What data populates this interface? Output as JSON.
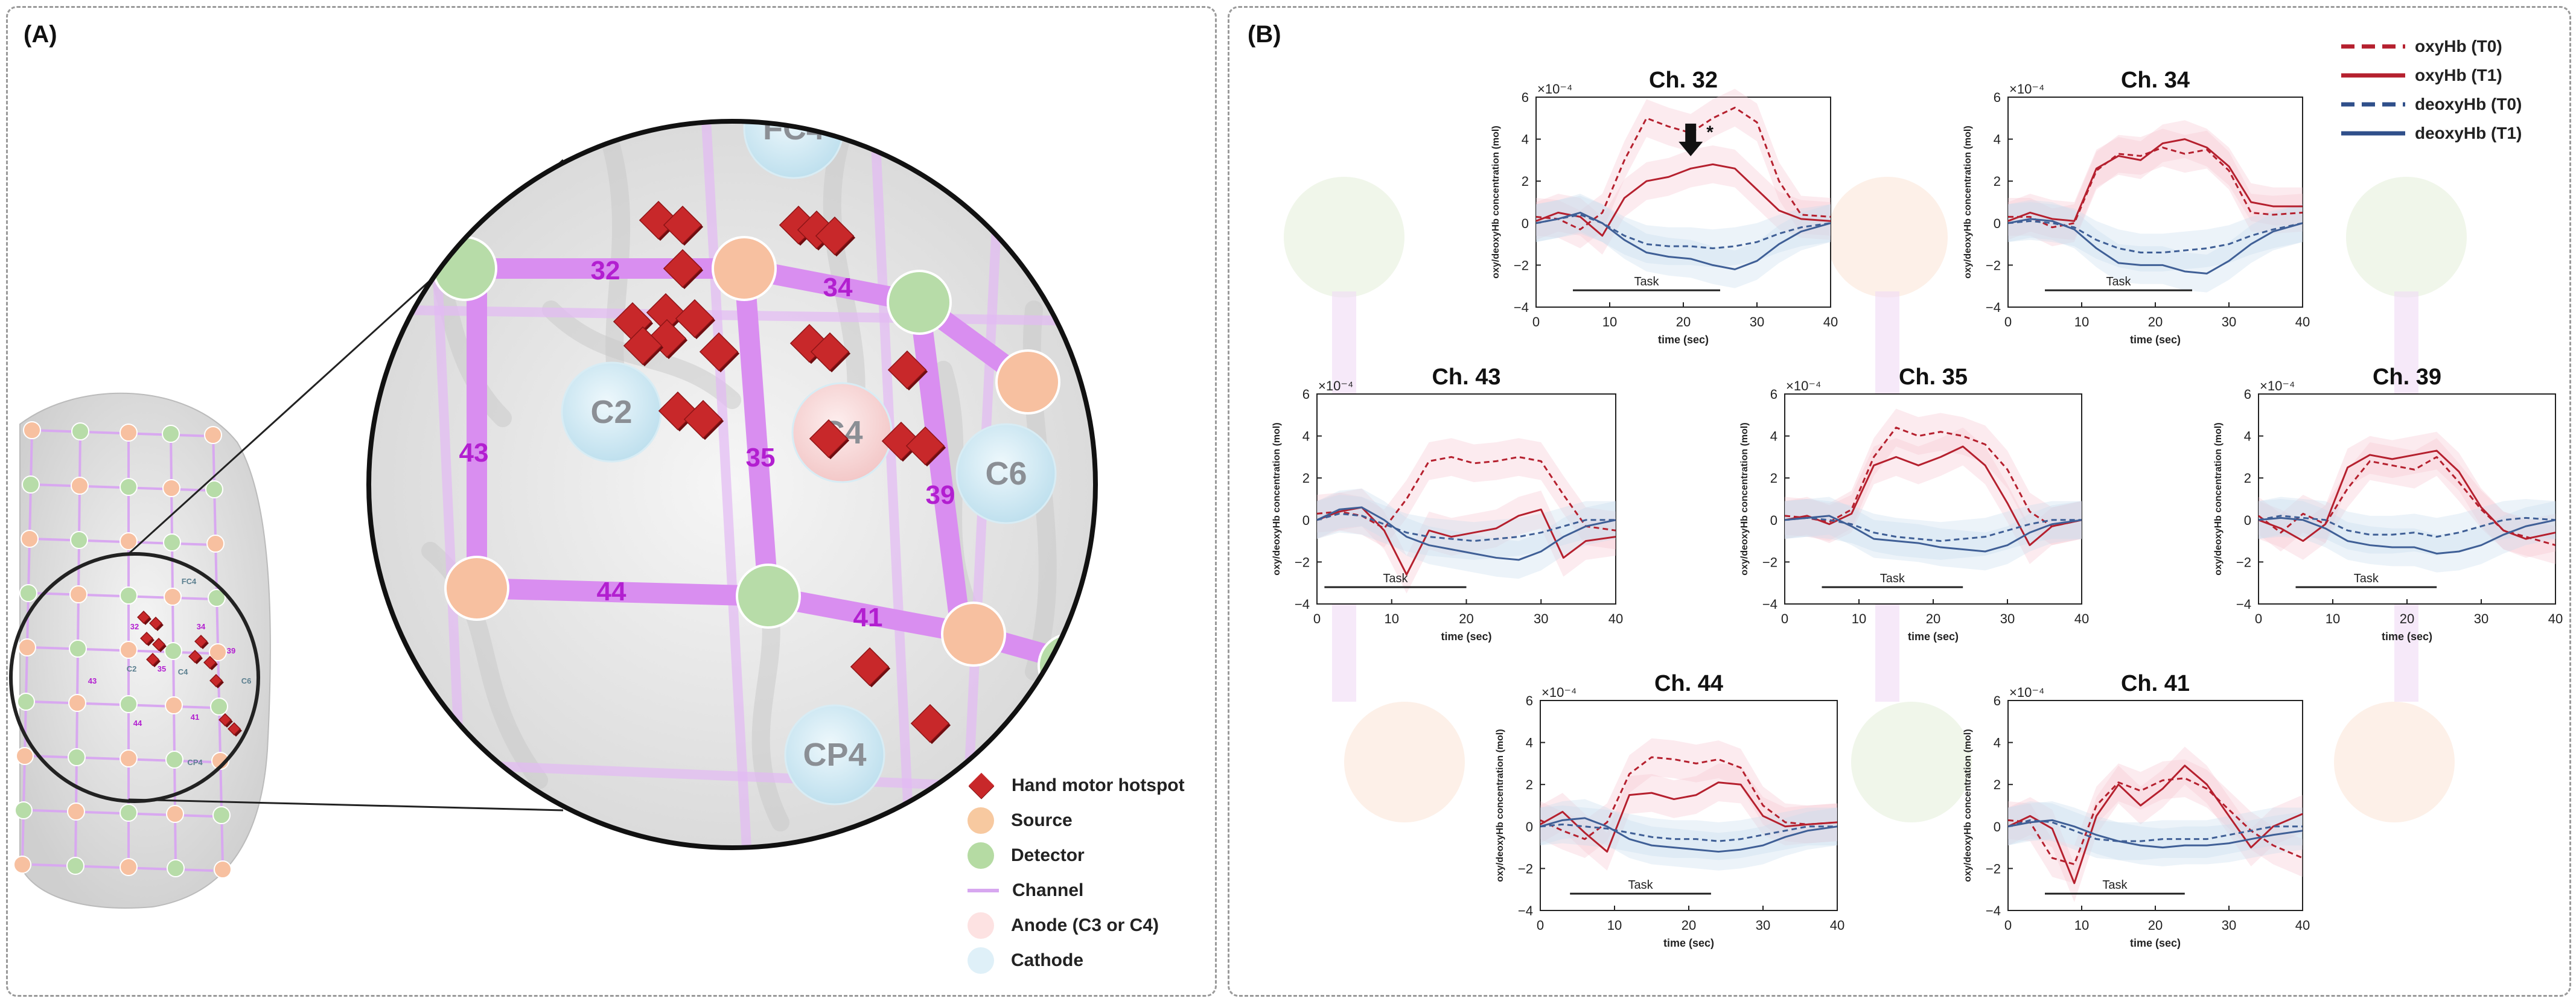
{
  "panel_a": {
    "label": "(A)",
    "channels": [
      "32",
      "34",
      "43",
      "35",
      "39",
      "44",
      "41"
    ],
    "electrodes": [
      "FC4",
      "C2",
      "C4",
      "C6",
      "CP4"
    ],
    "small_labels": [
      "FC4",
      "C2",
      "C4",
      "C6",
      "CP4",
      "32",
      "34",
      "43",
      "35",
      "39",
      "44",
      "41"
    ],
    "legend": [
      {
        "label": "Hand motor hotspot",
        "type": "diamond",
        "color": "#c8282a"
      },
      {
        "label": "Source",
        "type": "circle",
        "color": "#f7c9a0"
      },
      {
        "label": "Detector",
        "type": "circle",
        "color": "#b5dba3"
      },
      {
        "label": "Channel",
        "type": "line",
        "color": "#d7a7f0"
      },
      {
        "label": "Anode (C3 or C4)",
        "type": "circle",
        "color": "#fde2e2"
      },
      {
        "label": "Cathode",
        "type": "circle",
        "color": "#dff0f8"
      }
    ],
    "colors": {
      "channel": "#d98ef0",
      "channel_label": "#b21fd0",
      "source": "#f7c0a0",
      "detector": "#b7dca8",
      "hotspot": "#c8282a"
    }
  },
  "panel_b": {
    "label": "(B)",
    "legend": [
      {
        "label": "oxyHb (T0)",
        "color": "#b5202e",
        "dash": true
      },
      {
        "label": "oxyHb (T1)",
        "color": "#b5202e",
        "dash": false
      },
      {
        "label": "deoxyHb (T0)",
        "color": "#2f4f8a",
        "dash": true
      },
      {
        "label": "deoxyHb (T1)",
        "color": "#2f4f8a",
        "dash": false
      }
    ],
    "colors": {
      "oxy": "#b5202e",
      "deoxy": "#3f5f96",
      "oxy_band": "#f7c6d0",
      "deoxy_band": "#c8dcef"
    }
  },
  "chart_data": [
    {
      "type": "line",
      "title": "Ch. 32",
      "xlabel": "time (sec)",
      "ylabel": "oxy/deoxyHb concentration (mol)",
      "exponent": "×10⁻⁴",
      "xlim": [
        0,
        40
      ],
      "ylim": [
        -4,
        6
      ],
      "xticks": [
        0,
        10,
        20,
        30,
        40
      ],
      "yticks": [
        -4,
        -2,
        0,
        2,
        4,
        6
      ],
      "task": {
        "label": "Task",
        "start": 5,
        "end": 25
      },
      "annotation": "*",
      "x": [
        0,
        3,
        6,
        9,
        12,
        15,
        18,
        21,
        24,
        27,
        30,
        33,
        36,
        40
      ],
      "series": [
        {
          "name": "oxyHb (T0)",
          "values": [
            0.3,
            0.2,
            -0.3,
            0.5,
            3,
            5,
            4.6,
            4.3,
            5,
            5.5,
            4.8,
            2,
            0.4,
            0.3
          ]
        },
        {
          "name": "oxyHb (T1)",
          "values": [
            0.1,
            0.5,
            0.3,
            -0.6,
            1.2,
            2,
            2.2,
            2.6,
            2.8,
            2.6,
            1.6,
            0.6,
            0.2,
            0.1
          ]
        },
        {
          "name": "deoxyHb (T0)",
          "values": [
            0,
            0.2,
            0.4,
            0,
            -0.6,
            -1,
            -1.1,
            -1.1,
            -1.2,
            -1.1,
            -0.9,
            -0.5,
            -0.2,
            0
          ]
        },
        {
          "name": "deoxyHb (T1)",
          "values": [
            0,
            0.2,
            0.5,
            0,
            -0.8,
            -1.4,
            -1.6,
            -1.7,
            -2,
            -2.2,
            -1.8,
            -1,
            -0.4,
            0
          ]
        }
      ]
    },
    {
      "type": "line",
      "title": "Ch. 34",
      "xlabel": "time (sec)",
      "ylabel": "oxy/deoxyHb concentration (mol)",
      "exponent": "×10⁻⁴",
      "xlim": [
        0,
        40
      ],
      "ylim": [
        -4,
        6
      ],
      "xticks": [
        0,
        10,
        20,
        30,
        40
      ],
      "yticks": [
        -4,
        -2,
        0,
        2,
        4,
        6
      ],
      "task": {
        "label": "Task",
        "start": 5,
        "end": 25
      },
      "x": [
        0,
        3,
        6,
        9,
        12,
        15,
        18,
        21,
        24,
        27,
        30,
        33,
        36,
        40
      ],
      "series": [
        {
          "name": "oxyHb (T0)",
          "values": [
            0.3,
            0.3,
            -0.2,
            0,
            2.5,
            3.3,
            3.2,
            3.6,
            3.3,
            3.5,
            2.5,
            0.5,
            0.4,
            0.5
          ]
        },
        {
          "name": "oxyHb (T1)",
          "values": [
            0.1,
            0.5,
            0.2,
            0.1,
            2.6,
            3.2,
            3,
            3.8,
            4,
            3.6,
            2.7,
            1,
            0.8,
            0.8
          ]
        },
        {
          "name": "deoxyHb (T0)",
          "values": [
            0,
            0.1,
            0,
            -0.2,
            -0.8,
            -1.2,
            -1.4,
            -1.4,
            -1.3,
            -1.2,
            -1,
            -0.6,
            -0.3,
            0
          ]
        },
        {
          "name": "deoxyHb (T1)",
          "values": [
            0,
            0.2,
            0.1,
            -0.3,
            -1.2,
            -1.9,
            -2,
            -2,
            -2.3,
            -2.4,
            -1.8,
            -1,
            -0.4,
            0
          ]
        }
      ]
    },
    {
      "type": "line",
      "title": "Ch. 43",
      "xlabel": "time (sec)",
      "ylabel": "oxy/deoxyHb concentration (mol)",
      "exponent": "×10⁻⁴",
      "xlim": [
        0,
        40
      ],
      "ylim": [
        -4,
        6
      ],
      "xticks": [
        0,
        10,
        20,
        30,
        40
      ],
      "yticks": [
        -4,
        -2,
        0,
        2,
        4,
        6
      ],
      "task": {
        "label": "Task",
        "start": 1,
        "end": 20
      },
      "x": [
        0,
        3,
        6,
        9,
        12,
        15,
        18,
        21,
        24,
        27,
        30,
        33,
        36,
        40
      ],
      "series": [
        {
          "name": "oxyHb (T0)",
          "values": [
            0.3,
            0.4,
            0.2,
            -0.4,
            1,
            2.8,
            3,
            2.7,
            2.8,
            3,
            2.8,
            1.2,
            -0.3,
            -0.5
          ]
        },
        {
          "name": "oxyHb (T1)",
          "values": [
            0,
            0.4,
            0.6,
            -0.5,
            -2.6,
            -0.5,
            -0.8,
            -0.6,
            -0.4,
            0.2,
            0.5,
            -1.8,
            -1,
            -0.8
          ]
        },
        {
          "name": "deoxyHb (T0)",
          "values": [
            0,
            0.3,
            0.2,
            -0.2,
            -0.6,
            -0.8,
            -0.9,
            -1,
            -0.9,
            -0.8,
            -0.6,
            -0.3,
            0,
            0
          ]
        },
        {
          "name": "deoxyHb (T1)",
          "values": [
            0,
            0.5,
            0.6,
            0,
            -0.8,
            -1.2,
            -1.4,
            -1.6,
            -1.8,
            -1.9,
            -1.5,
            -0.8,
            -0.3,
            0
          ]
        }
      ]
    },
    {
      "type": "line",
      "title": "Ch. 35",
      "xlabel": "time (sec)",
      "ylabel": "oxy/deoxyHb concentration (mol)",
      "exponent": "×10⁻⁴",
      "xlim": [
        0,
        40
      ],
      "ylim": [
        -4,
        6
      ],
      "xticks": [
        0,
        10,
        20,
        30,
        40
      ],
      "yticks": [
        -4,
        -2,
        0,
        2,
        4,
        6
      ],
      "task": {
        "label": "Task",
        "start": 5,
        "end": 24
      },
      "x": [
        0,
        3,
        6,
        9,
        12,
        15,
        18,
        21,
        24,
        27,
        30,
        33,
        36,
        40
      ],
      "series": [
        {
          "name": "oxyHb (T0)",
          "values": [
            0.2,
            0.1,
            -0.1,
            0.5,
            3,
            4.4,
            4,
            4.2,
            4,
            3.6,
            2.4,
            0.4,
            -0.3,
            0
          ]
        },
        {
          "name": "oxyHb (T1)",
          "values": [
            0,
            0.2,
            -0.2,
            0.3,
            2.6,
            3,
            2.6,
            3,
            3.5,
            2.6,
            0.8,
            -1.2,
            -0.3,
            0
          ]
        },
        {
          "name": "deoxyHb (T0)",
          "values": [
            0,
            0.1,
            0,
            -0.2,
            -0.6,
            -0.8,
            -0.9,
            -1,
            -0.9,
            -0.8,
            -0.5,
            -0.2,
            0,
            0
          ]
        },
        {
          "name": "deoxyHb (T1)",
          "values": [
            0,
            0.1,
            0.2,
            -0.3,
            -0.9,
            -1,
            -1.1,
            -1.3,
            -1.4,
            -1.5,
            -1.2,
            -0.6,
            -0.2,
            0
          ]
        }
      ]
    },
    {
      "type": "line",
      "title": "Ch. 39",
      "xlabel": "time (sec)",
      "ylabel": "oxy/deoxyHb concentration (mol)",
      "exponent": "×10⁻⁴",
      "xlim": [
        0,
        40
      ],
      "ylim": [
        -4,
        6
      ],
      "xticks": [
        0,
        10,
        20,
        30,
        40
      ],
      "yticks": [
        -4,
        -2,
        0,
        2,
        4,
        6
      ],
      "task": {
        "label": "Task",
        "start": 5,
        "end": 24
      },
      "x": [
        0,
        3,
        6,
        9,
        12,
        15,
        18,
        21,
        24,
        27,
        30,
        33,
        36,
        40
      ],
      "series": [
        {
          "name": "oxyHb (T0)",
          "values": [
            0.2,
            -0.6,
            0.3,
            -0.2,
            1.5,
            2.8,
            2.6,
            2.4,
            3,
            1.8,
            0.5,
            -0.5,
            -0.8,
            -1.2
          ]
        },
        {
          "name": "oxyHb (T1)",
          "values": [
            0,
            -0.4,
            -1,
            -0.2,
            2.5,
            3.1,
            2.9,
            3.1,
            3.3,
            2.3,
            0.6,
            -0.5,
            -0.9,
            -0.6
          ]
        },
        {
          "name": "deoxyHb (T0)",
          "values": [
            0,
            0.2,
            0.1,
            0,
            -0.5,
            -0.7,
            -0.7,
            -0.6,
            -0.8,
            -0.6,
            -0.3,
            0,
            0.1,
            0
          ]
        },
        {
          "name": "deoxyHb (T1)",
          "values": [
            0,
            0.1,
            0,
            -0.4,
            -1,
            -1.2,
            -1.3,
            -1.3,
            -1.6,
            -1.5,
            -1.2,
            -0.7,
            -0.3,
            0
          ]
        }
      ]
    },
    {
      "type": "line",
      "title": "Ch. 44",
      "xlabel": "time (sec)",
      "ylabel": "oxy/deoxyHb concentration (mol)",
      "exponent": "×10⁻⁴",
      "xlim": [
        0,
        40
      ],
      "ylim": [
        -4,
        6
      ],
      "xticks": [
        0,
        10,
        20,
        30,
        40
      ],
      "yticks": [
        -4,
        -2,
        0,
        2,
        4,
        6
      ],
      "task": {
        "label": "Task",
        "start": 4,
        "end": 23
      },
      "x": [
        0,
        3,
        6,
        9,
        12,
        15,
        18,
        21,
        24,
        27,
        30,
        33,
        36,
        40
      ],
      "series": [
        {
          "name": "oxyHb (T0)",
          "values": [
            0.3,
            -0.2,
            -0.6,
            0.2,
            2.5,
            3.3,
            3.2,
            3,
            3.2,
            2.8,
            1,
            0.2,
            0.1,
            0.2
          ]
        },
        {
          "name": "oxyHb (T1)",
          "values": [
            0.1,
            0.7,
            -0.3,
            -1.2,
            1.5,
            1.6,
            1.3,
            1.5,
            2.1,
            2,
            0.5,
            0,
            0.1,
            0.2
          ]
        },
        {
          "name": "deoxyHb (T0)",
          "values": [
            0,
            0.1,
            0,
            -0.1,
            -0.3,
            -0.5,
            -0.6,
            -0.6,
            -0.7,
            -0.6,
            -0.4,
            -0.2,
            0,
            0
          ]
        },
        {
          "name": "deoxyHb (T1)",
          "values": [
            0,
            0.3,
            0.4,
            0,
            -0.6,
            -0.9,
            -1,
            -1.1,
            -1.2,
            -1.1,
            -0.9,
            -0.5,
            -0.2,
            0
          ]
        }
      ]
    },
    {
      "type": "line",
      "title": "Ch. 41",
      "xlabel": "time (sec)",
      "ylabel": "oxy/deoxyHb concentration (mol)",
      "exponent": "×10⁻⁴",
      "xlim": [
        0,
        40
      ],
      "ylim": [
        -4,
        6
      ],
      "xticks": [
        0,
        10,
        20,
        30,
        40
      ],
      "yticks": [
        -4,
        -2,
        0,
        2,
        4,
        6
      ],
      "task": {
        "label": "Task",
        "start": 5,
        "end": 24
      },
      "x": [
        0,
        3,
        6,
        9,
        12,
        15,
        18,
        21,
        24,
        27,
        30,
        33,
        36,
        40
      ],
      "series": [
        {
          "name": "oxyHb (T0)",
          "values": [
            0.3,
            0.2,
            -1.5,
            -1.8,
            1,
            2.1,
            1.7,
            2.2,
            2.3,
            1.8,
            0.8,
            -0.2,
            -0.9,
            -1.5
          ]
        },
        {
          "name": "oxyHb (T1)",
          "values": [
            0,
            0.5,
            -0.1,
            -2.7,
            0.5,
            2,
            1,
            1.8,
            2.9,
            2,
            0.5,
            -1,
            0,
            0.6
          ]
        },
        {
          "name": "deoxyHb (T0)",
          "values": [
            0,
            0.3,
            0.2,
            -0.2,
            -0.6,
            -0.7,
            -0.7,
            -0.6,
            -0.6,
            -0.6,
            -0.4,
            -0.2,
            0,
            0
          ]
        },
        {
          "name": "deoxyHb (T1)",
          "values": [
            0,
            0.2,
            0.3,
            0,
            -0.4,
            -0.7,
            -0.9,
            -1,
            -0.9,
            -0.9,
            -0.8,
            -0.6,
            -0.4,
            -0.2
          ]
        }
      ]
    }
  ]
}
